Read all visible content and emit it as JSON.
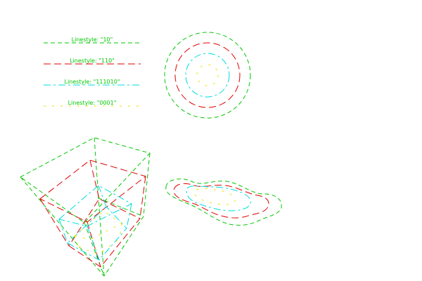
{
  "colors": {
    "background": "#ffffff",
    "green": "#00c800",
    "red": "#e00000",
    "cyan": "#00dcdc",
    "yellow": "#f0e000"
  },
  "legend": [
    {
      "label": "Linestyle: \"10\"",
      "pattern": "10",
      "color": "#00c800"
    },
    {
      "label": "Linestyle: \"110\"",
      "pattern": "110",
      "color": "#e00000"
    },
    {
      "label": "Linestyle: \"111010\"",
      "pattern": "111010",
      "color": "#00dcdc"
    },
    {
      "label": "Linestyle: \"0001\"",
      "pattern": "0001",
      "color": "#f0e000"
    }
  ]
}
